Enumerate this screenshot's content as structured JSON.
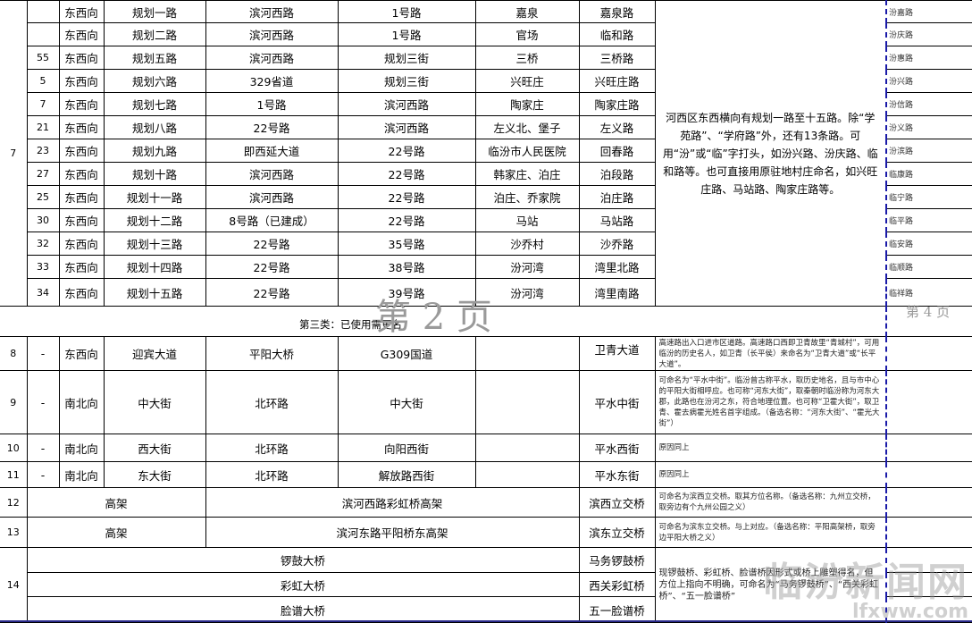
{
  "section1": {
    "group_no": "7",
    "rows": [
      {
        "seq": "",
        "direction": "东西向",
        "name": "规划一路",
        "start": "滨河西路",
        "end": "1号路",
        "origin": "嘉泉",
        "new_name": "嘉泉路",
        "alt": "汾嘉路"
      },
      {
        "seq": "",
        "direction": "东西向",
        "name": "规划二路",
        "start": "滨河西路",
        "end": "1号路",
        "origin": "官场",
        "new_name": "临和路",
        "alt": "汾庆路"
      },
      {
        "seq": "55",
        "direction": "东西向",
        "name": "规划五路",
        "start": "滨河西路",
        "end": "规划三街",
        "origin": "三桥",
        "new_name": "三桥路",
        "alt": "汾惠路"
      },
      {
        "seq": "5",
        "direction": "东西向",
        "name": "规划六路",
        "start": "329省道",
        "end": "规划三街",
        "origin": "兴旺庄",
        "new_name": "兴旺庄路",
        "alt": "汾兴路"
      },
      {
        "seq": "7",
        "direction": "东西向",
        "name": "规划七路",
        "start": "1号路",
        "end": "滨河西路",
        "origin": "陶家庄",
        "new_name": "陶家庄路",
        "alt": "汾信路"
      },
      {
        "seq": "21",
        "direction": "东西向",
        "name": "规划八路",
        "start": "22号路",
        "end": "滨河西路",
        "origin": "左义北、堡子",
        "new_name": "左义路",
        "alt": "汾义路"
      },
      {
        "seq": "23",
        "direction": "东西向",
        "name": "规划九路",
        "start": "即西延大道",
        "end": "22号路",
        "origin": "临汾市人民医院",
        "new_name": "回春路",
        "alt": "汾滨路"
      },
      {
        "seq": "27",
        "direction": "东西向",
        "name": "规划十路",
        "start": "滨河西路",
        "end": "22号路",
        "origin": "韩家庄、泊庄",
        "new_name": "泊段路",
        "alt": "临康路"
      },
      {
        "seq": "25",
        "direction": "东西向",
        "name": "规划十一路",
        "start": "滨河西路",
        "end": "22号路",
        "origin": "泊庄、乔家院",
        "new_name": "泊庄路",
        "alt": "临宁路"
      },
      {
        "seq": "30",
        "direction": "东西向",
        "name": "规划十二路",
        "start": "8号路（已建成）",
        "end": "22号路",
        "origin": "马站",
        "new_name": "马站路",
        "alt": "临平路"
      },
      {
        "seq": "32",
        "direction": "东西向",
        "name": "规划十三路",
        "start": "22号路",
        "end": "35号路",
        "origin": "沙乔村",
        "new_name": "沙乔路",
        "alt": "临安路"
      },
      {
        "seq": "33",
        "direction": "东西向",
        "name": "规划十四路",
        "start": "22号路",
        "end": "38号路",
        "origin": "汾河湾",
        "new_name": "湾里北路",
        "alt": "临顺路"
      },
      {
        "seq": "34",
        "direction": "东西向",
        "name": "规划十五路",
        "start": "22号路",
        "end": "39号路",
        "origin": "汾河湾",
        "new_name": "湾里南路",
        "alt": "临祥路"
      }
    ],
    "remark": "河西区东西横向有规划一路至十五路。除“学苑路”、“学府路”外，还有13条路。可用“汾”或“临”字打头，如汾兴路、汾庆路、临和路等。也可直接用原驻地村庄命名，如兴旺庄路、马站路、陶家庄路等。"
  },
  "section2": {
    "header": "第三类：已使用需更名",
    "rows": [
      {
        "no": "8",
        "seq": "-",
        "direction": "东西向",
        "name": "迎宾大道",
        "start": "平阳大桥",
        "end": "G309国道",
        "origin": "",
        "new_name": "卫青大道",
        "remark": "高速路出入口进市区道路。高速路口西即卫青故里“青城村”，可用临汾的历史名人，如卫青（长平侯）来命名为“卫青大道”或“长平大道”。"
      },
      {
        "no": "9",
        "seq": "-",
        "direction": "南北向",
        "name": "中大街",
        "start": "北环路",
        "end": "中大街",
        "origin": "",
        "new_name": "平水中街",
        "remark": "可命名为“平水中街”。临汾曾古称平水，取历史地名，且与市中心的平阳大街相呼应。也可称“河东大街”，取秦朝时临汾称为河东大郡，此路也在汾河之东，符合地理位置。也可称“卫霍大街”，取卫青、霍去病霍光姓名首字组成。（备选名称：“河东大街”、“霍光大街”）"
      },
      {
        "no": "10",
        "seq": "-",
        "direction": "南北向",
        "name": "西大街",
        "start": "北环路",
        "end": "向阳西街",
        "origin": "",
        "new_name": "平水西街",
        "remark": "原因同上"
      },
      {
        "no": "11",
        "seq": "-",
        "direction": "南北向",
        "name": "东大街",
        "start": "北环路",
        "end": "解放路西街",
        "origin": "",
        "new_name": "平水东街",
        "remark": "原因同上"
      }
    ],
    "merged_rows": [
      {
        "no": "12",
        "type": "高架",
        "name": "滨河西路彩虹桥高架",
        "new_name": "滨西立交桥",
        "remark": "可命名为滨西立交桥。取其方位名称。（备选名称：九州立交桥，取旁边有个九州公园之义）"
      },
      {
        "no": "13",
        "type": "高架",
        "name": "滨河东路平阳桥东高架",
        "new_name": "滨东立交桥",
        "remark": "可命名为滨东立交桥。与上对应。（备选名称：平阳高架桥，取旁边平阳大桥之义）"
      }
    ],
    "bridge_group": {
      "no": "14",
      "items": [
        {
          "name": "锣鼓大桥",
          "new_name": "马务锣鼓桥"
        },
        {
          "name": "彩虹大桥",
          "new_name": "西关彩虹桥"
        },
        {
          "name": "脸谱大桥",
          "new_name": "五一脸谱桥"
        }
      ],
      "remark": "现锣鼓桥、彩虹桥、脸谱桥因形式或桥上雕塑得名，但方位上指向不明确，可命名为“马务锣鼓桥”、“西关彩虹桥”、“五一脸谱桥”"
    }
  },
  "page_marks": {
    "left": "第 2 页",
    "right": "第 4 页"
  },
  "watermark": {
    "cn": "临汾新闻网",
    "en": "lfxww.com"
  },
  "colors": {
    "page_break": "#1a1aa8",
    "watermark": "#9a9a9a"
  }
}
